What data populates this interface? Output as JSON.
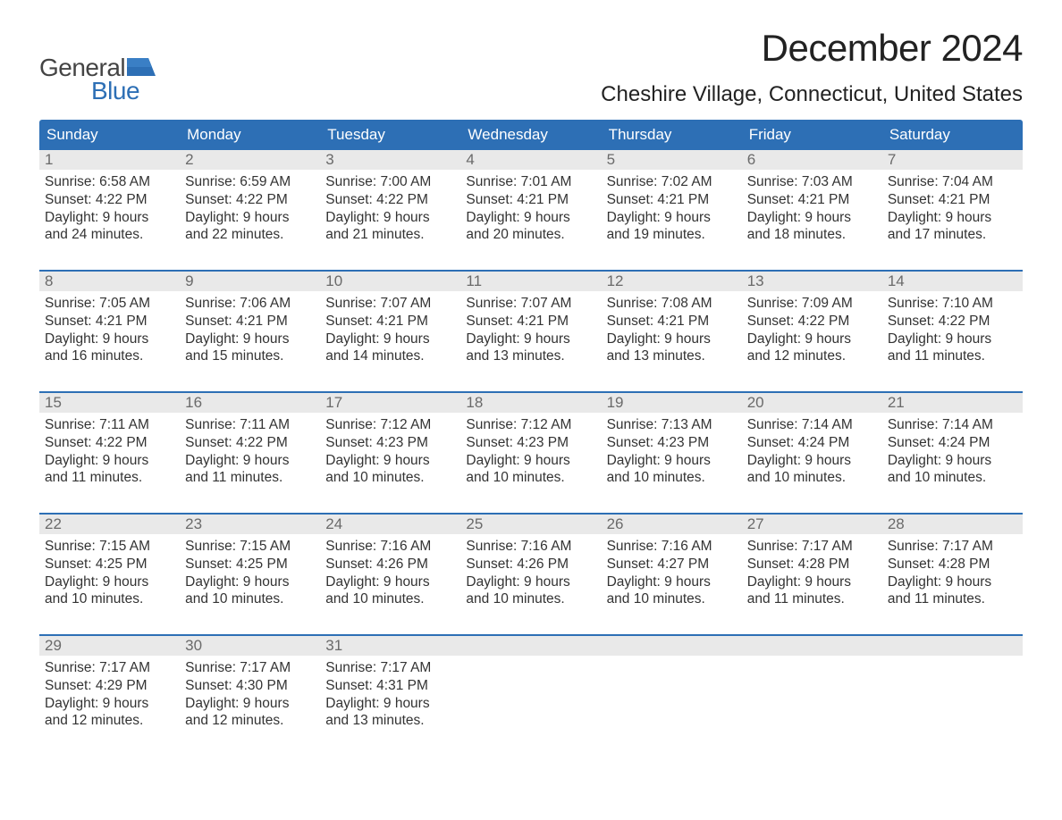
{
  "logo": {
    "text1": "General",
    "text2": "Blue",
    "flag_color": "#2d6fb5"
  },
  "title": "December 2024",
  "location": "Cheshire Village, Connecticut, United States",
  "colors": {
    "header_bg": "#2d6fb5",
    "header_text": "#ffffff",
    "daynum_bg": "#e9e9e9",
    "daynum_text": "#6a6a6a",
    "week_border": "#2d6fb5",
    "body_text": "#333333"
  },
  "weekdays": [
    "Sunday",
    "Monday",
    "Tuesday",
    "Wednesday",
    "Thursday",
    "Friday",
    "Saturday"
  ],
  "weeks": [
    [
      {
        "n": "1",
        "sr": "6:58 AM",
        "ss": "4:22 PM",
        "dl": "9 hours and 24 minutes."
      },
      {
        "n": "2",
        "sr": "6:59 AM",
        "ss": "4:22 PM",
        "dl": "9 hours and 22 minutes."
      },
      {
        "n": "3",
        "sr": "7:00 AM",
        "ss": "4:22 PM",
        "dl": "9 hours and 21 minutes."
      },
      {
        "n": "4",
        "sr": "7:01 AM",
        "ss": "4:21 PM",
        "dl": "9 hours and 20 minutes."
      },
      {
        "n": "5",
        "sr": "7:02 AM",
        "ss": "4:21 PM",
        "dl": "9 hours and 19 minutes."
      },
      {
        "n": "6",
        "sr": "7:03 AM",
        "ss": "4:21 PM",
        "dl": "9 hours and 18 minutes."
      },
      {
        "n": "7",
        "sr": "7:04 AM",
        "ss": "4:21 PM",
        "dl": "9 hours and 17 minutes."
      }
    ],
    [
      {
        "n": "8",
        "sr": "7:05 AM",
        "ss": "4:21 PM",
        "dl": "9 hours and 16 minutes."
      },
      {
        "n": "9",
        "sr": "7:06 AM",
        "ss": "4:21 PM",
        "dl": "9 hours and 15 minutes."
      },
      {
        "n": "10",
        "sr": "7:07 AM",
        "ss": "4:21 PM",
        "dl": "9 hours and 14 minutes."
      },
      {
        "n": "11",
        "sr": "7:07 AM",
        "ss": "4:21 PM",
        "dl": "9 hours and 13 minutes."
      },
      {
        "n": "12",
        "sr": "7:08 AM",
        "ss": "4:21 PM",
        "dl": "9 hours and 13 minutes."
      },
      {
        "n": "13",
        "sr": "7:09 AM",
        "ss": "4:22 PM",
        "dl": "9 hours and 12 minutes."
      },
      {
        "n": "14",
        "sr": "7:10 AM",
        "ss": "4:22 PM",
        "dl": "9 hours and 11 minutes."
      }
    ],
    [
      {
        "n": "15",
        "sr": "7:11 AM",
        "ss": "4:22 PM",
        "dl": "9 hours and 11 minutes."
      },
      {
        "n": "16",
        "sr": "7:11 AM",
        "ss": "4:22 PM",
        "dl": "9 hours and 11 minutes."
      },
      {
        "n": "17",
        "sr": "7:12 AM",
        "ss": "4:23 PM",
        "dl": "9 hours and 10 minutes."
      },
      {
        "n": "18",
        "sr": "7:12 AM",
        "ss": "4:23 PM",
        "dl": "9 hours and 10 minutes."
      },
      {
        "n": "19",
        "sr": "7:13 AM",
        "ss": "4:23 PM",
        "dl": "9 hours and 10 minutes."
      },
      {
        "n": "20",
        "sr": "7:14 AM",
        "ss": "4:24 PM",
        "dl": "9 hours and 10 minutes."
      },
      {
        "n": "21",
        "sr": "7:14 AM",
        "ss": "4:24 PM",
        "dl": "9 hours and 10 minutes."
      }
    ],
    [
      {
        "n": "22",
        "sr": "7:15 AM",
        "ss": "4:25 PM",
        "dl": "9 hours and 10 minutes."
      },
      {
        "n": "23",
        "sr": "7:15 AM",
        "ss": "4:25 PM",
        "dl": "9 hours and 10 minutes."
      },
      {
        "n": "24",
        "sr": "7:16 AM",
        "ss": "4:26 PM",
        "dl": "9 hours and 10 minutes."
      },
      {
        "n": "25",
        "sr": "7:16 AM",
        "ss": "4:26 PM",
        "dl": "9 hours and 10 minutes."
      },
      {
        "n": "26",
        "sr": "7:16 AM",
        "ss": "4:27 PM",
        "dl": "9 hours and 10 minutes."
      },
      {
        "n": "27",
        "sr": "7:17 AM",
        "ss": "4:28 PM",
        "dl": "9 hours and 11 minutes."
      },
      {
        "n": "28",
        "sr": "7:17 AM",
        "ss": "4:28 PM",
        "dl": "9 hours and 11 minutes."
      }
    ],
    [
      {
        "n": "29",
        "sr": "7:17 AM",
        "ss": "4:29 PM",
        "dl": "9 hours and 12 minutes."
      },
      {
        "n": "30",
        "sr": "7:17 AM",
        "ss": "4:30 PM",
        "dl": "9 hours and 12 minutes."
      },
      {
        "n": "31",
        "sr": "7:17 AM",
        "ss": "4:31 PM",
        "dl": "9 hours and 13 minutes."
      },
      null,
      null,
      null,
      null
    ]
  ],
  "labels": {
    "sunrise": "Sunrise:",
    "sunset": "Sunset:",
    "daylight": "Daylight:"
  }
}
